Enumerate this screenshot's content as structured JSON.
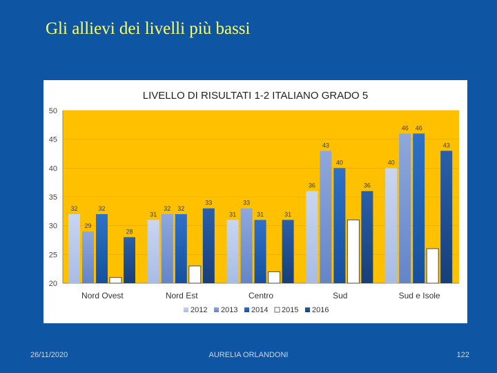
{
  "slide": {
    "title": "Gli allievi dei livelli più bassi",
    "footer_date": "26/11/2020",
    "footer_author": "AURELIA ORLANDONI",
    "footer_page": "122"
  },
  "chart_data": {
    "type": "bar",
    "title": "LIVELLO DI RISULTATI 1-2 ITALIANO  GRADO 5",
    "categories": [
      "Nord Ovest",
      "Nord Est",
      "Centro",
      "Sud",
      "Sud e Isole"
    ],
    "series": [
      {
        "name": "2012",
        "values": [
          32,
          31,
          31,
          36,
          40
        ]
      },
      {
        "name": "2013",
        "values": [
          29,
          32,
          33,
          43,
          46
        ]
      },
      {
        "name": "2014",
        "values": [
          32,
          32,
          31,
          40,
          46
        ]
      },
      {
        "name": "2015",
        "values": [
          21,
          23,
          22,
          31,
          26
        ]
      },
      {
        "name": "2016",
        "values": [
          28,
          33,
          31,
          36,
          43
        ]
      }
    ],
    "data_labels": [
      [
        "32",
        "29",
        "32",
        "",
        "28"
      ],
      [
        "31",
        "32",
        "32",
        "",
        "33"
      ],
      [
        "31",
        "33",
        "31",
        "",
        "31"
      ],
      [
        "36",
        "43",
        "40",
        "",
        "36"
      ],
      [
        "40",
        "46",
        "46",
        "",
        "43"
      ]
    ],
    "yticks": [
      20,
      25,
      30,
      35,
      40,
      45,
      50
    ],
    "ylim": [
      20,
      50
    ],
    "xlabel": "",
    "ylabel": "",
    "plot_background": "#ffc000",
    "series_colors": [
      "#bccbeb",
      "#7f9cd6",
      "#1f62b8",
      "#ffffff",
      "#1e4d8c"
    ],
    "legend_position": "bottom"
  }
}
